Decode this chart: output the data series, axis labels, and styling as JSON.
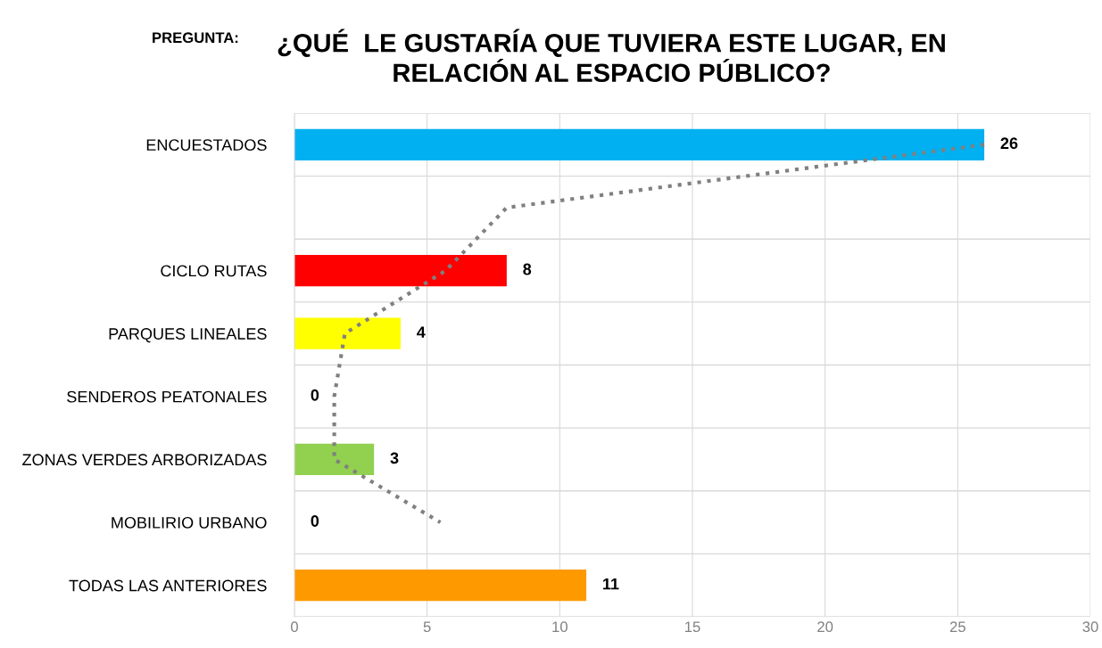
{
  "chart_data": {
    "type": "bar",
    "orientation": "horizontal",
    "title": "¿QUÉ  LE GUSTARÍA QUE TUVIERA ESTE LUGAR, EN\nRELACIÓN AL ESPACIO PÚBLICO?",
    "annotations": [
      "PREGUNTA:"
    ],
    "categories": [
      "ENCUESTADOS",
      null,
      "CICLO RUTAS",
      "PARQUES LINEALES",
      "SENDEROS PEATONALES",
      "ZONAS VERDES ARBORIZADAS",
      "MOBILIRIO URBANO",
      "TODAS LAS ANTERIORES"
    ],
    "series": [
      {
        "values": [
          26,
          null,
          8,
          4,
          0,
          3,
          0,
          11
        ],
        "value_labels": [
          "26",
          null,
          "8",
          "4",
          "0",
          "3",
          "0",
          "11"
        ],
        "colors": [
          "#00b0f0",
          null,
          "#ff0000",
          "#ffff00",
          "#a0a0a0",
          "#92d050",
          "#a0a0a0",
          "#ff9900"
        ]
      },
      {
        "type": "line",
        "color": "#808080",
        "line_style": "dotted",
        "values": [
          26,
          8,
          5.7,
          1.9,
          1.5,
          1.5,
          5.5,
          null
        ]
      }
    ],
    "xlim": [
      0,
      30
    ],
    "xticks": [
      0,
      5,
      10,
      15,
      20,
      25,
      30
    ],
    "grid": true
  }
}
